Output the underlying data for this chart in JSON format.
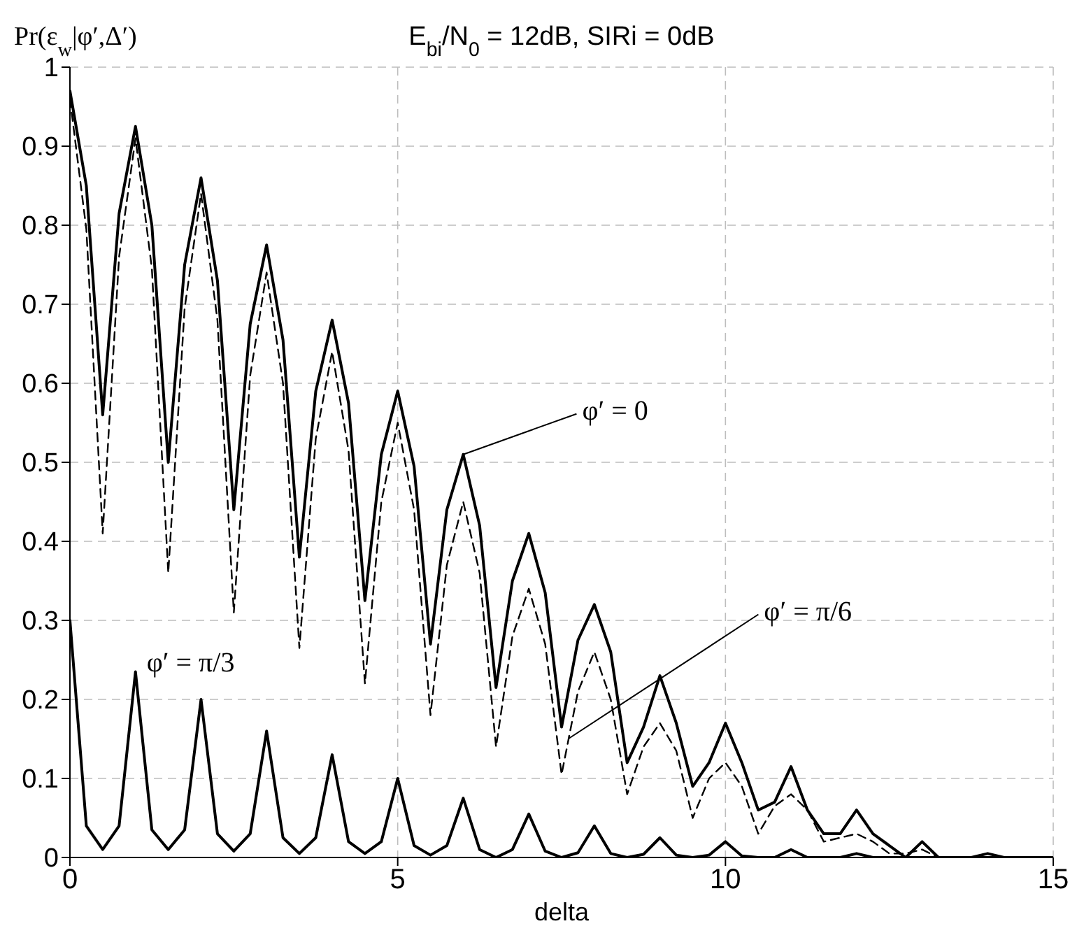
{
  "chart_data": {
    "type": "line",
    "title": "E$_{bi}$/N$_{0}$ = 12dB, SIRi = 0dB",
    "xlabel": "delta",
    "ylabel": "Pr(ε$_{w}$|φ′,Δ′)",
    "x": [
      0,
      0.25,
      0.5,
      0.75,
      1,
      1.25,
      1.5,
      1.75,
      2,
      2.25,
      2.5,
      2.75,
      3,
      3.25,
      3.5,
      3.75,
      4,
      4.25,
      4.5,
      4.75,
      5,
      5.25,
      5.5,
      5.75,
      6,
      6.25,
      6.5,
      6.75,
      7,
      7.25,
      7.5,
      7.75,
      8,
      8.25,
      8.5,
      8.75,
      9,
      9.25,
      9.5,
      9.75,
      10,
      10.25,
      10.5,
      10.75,
      11,
      11.25,
      11.5,
      11.75,
      12,
      12.25,
      12.5,
      12.75,
      13,
      13.25,
      13.5,
      13.75,
      14,
      14.25,
      14.5,
      14.75,
      15
    ],
    "series": [
      {
        "color": "#000000",
        "line_style": "solid",
        "values": [
          0.97,
          0.85,
          0.56,
          0.815,
          0.925,
          0.8,
          0.5,
          0.75,
          0.86,
          0.73,
          0.44,
          0.675,
          0.775,
          0.655,
          0.38,
          0.59,
          0.68,
          0.575,
          0.325,
          0.51,
          0.59,
          0.495,
          0.27,
          0.44,
          0.51,
          0.42,
          0.215,
          0.35,
          0.41,
          0.335,
          0.165,
          0.275,
          0.32,
          0.26,
          0.12,
          0.165,
          0.23,
          0.17,
          0.09,
          0.12,
          0.17,
          0.12,
          0.06,
          0.07,
          0.115,
          0.06,
          0.03,
          0.03,
          0.06,
          0.03,
          0.015,
          0,
          0.02,
          0,
          0,
          0,
          0.005,
          0,
          0,
          0,
          0
        ]
      },
      {
        "color": "#000000",
        "line_style": "dashed",
        "values": [
          0.96,
          0.795,
          0.41,
          0.76,
          0.91,
          0.745,
          0.36,
          0.695,
          0.84,
          0.68,
          0.31,
          0.61,
          0.74,
          0.6,
          0.265,
          0.53,
          0.64,
          0.515,
          0.22,
          0.45,
          0.55,
          0.44,
          0.18,
          0.37,
          0.45,
          0.36,
          0.14,
          0.28,
          0.34,
          0.27,
          0.105,
          0.21,
          0.26,
          0.2,
          0.08,
          0.14,
          0.17,
          0.135,
          0.05,
          0.1,
          0.12,
          0.09,
          0.03,
          0.065,
          0.08,
          0.06,
          0.02,
          0.025,
          0.03,
          0.02,
          0.005,
          0.005,
          0.01,
          0,
          0,
          0,
          0,
          0,
          0,
          0,
          0
        ]
      },
      {
        "color": "#000000",
        "line_style": "solid",
        "values": [
          0.3,
          0.04,
          0.01,
          0.04,
          0.235,
          0.035,
          0.01,
          0.035,
          0.2,
          0.03,
          0.008,
          0.03,
          0.16,
          0.025,
          0.005,
          0.025,
          0.13,
          0.02,
          0.005,
          0.02,
          0.1,
          0.015,
          0.003,
          0.015,
          0.075,
          0.01,
          0,
          0.01,
          0.055,
          0.008,
          0,
          0.006,
          0.04,
          0.005,
          0,
          0.004,
          0.025,
          0.003,
          0,
          0.003,
          0.02,
          0.002,
          0,
          0,
          0.01,
          0,
          0,
          0,
          0.005,
          0,
          0,
          0,
          0,
          0,
          0,
          0,
          0,
          0,
          0,
          0,
          0
        ]
      }
    ],
    "xlim": [
      0,
      15
    ],
    "xticks": [
      0,
      5,
      10,
      15
    ],
    "ylim": [
      0,
      1
    ],
    "yticks": [
      0,
      0.1,
      0.2,
      0.3,
      0.4,
      0.5,
      0.6,
      0.7,
      0.8,
      0.9,
      1
    ],
    "grid": true,
    "marker": "none",
    "legend": false,
    "annotations": [
      {
        "text": "φ′ = 0",
        "x": 6,
        "y": 0.51
      },
      {
        "text": "φ′ = π/6",
        "x": 7.6,
        "y": 0.15
      },
      {
        "text": "φ′ = π/3",
        "x": 1,
        "y": 0.235
      }
    ]
  }
}
